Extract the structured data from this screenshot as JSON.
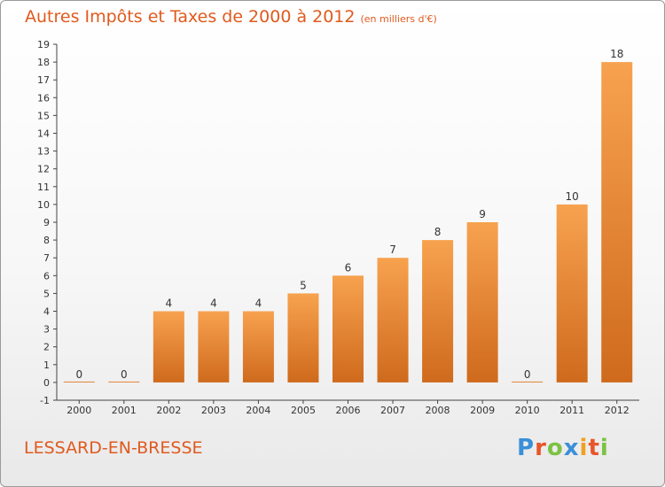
{
  "header": {
    "title": "Autres Impôts et Taxes de 2000 à 2012",
    "subtitle": "(en milliers d'€)"
  },
  "footer": {
    "place": "LESSARD-EN-BRESSE",
    "logo": "Proxiti"
  },
  "colors": {
    "title": "#e05a1e",
    "bar_top": "#f7a24f",
    "bar_bottom": "#cf6a1c",
    "logo_letters": [
      "#3a8fd8",
      "#e8552a",
      "#7cc242",
      "#3a8fd8",
      "#f0a020",
      "#e8552a",
      "#7cc242"
    ]
  },
  "chart_data": {
    "type": "bar",
    "categories": [
      "2000",
      "2001",
      "2002",
      "2003",
      "2004",
      "2005",
      "2006",
      "2007",
      "2008",
      "2009",
      "2010",
      "2011",
      "2012"
    ],
    "values": [
      0,
      0,
      4,
      4,
      4,
      5,
      6,
      7,
      8,
      9,
      0,
      10,
      18
    ],
    "data_labels": [
      "0",
      "0",
      "4",
      "4",
      "4",
      "5",
      "6",
      "7",
      "8",
      "9",
      "0",
      "10",
      "18"
    ],
    "y_ticks": [
      "-1",
      "0",
      "1",
      "2",
      "3",
      "4",
      "5",
      "6",
      "7",
      "8",
      "9",
      "10",
      "11",
      "12",
      "13",
      "14",
      "15",
      "16",
      "17",
      "18",
      "19"
    ],
    "ylim": [
      -1,
      19
    ],
    "grid": false
  }
}
